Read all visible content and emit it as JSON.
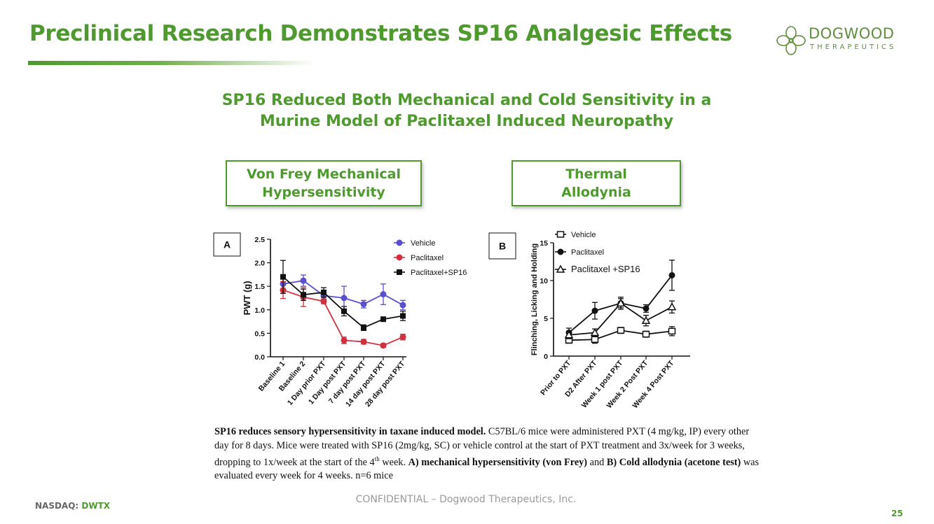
{
  "slide": {
    "title": "Preclinical Research Demonstrates SP16 Analgesic Effects",
    "subtitle_line1": "SP16 Reduced Both Mechanical and Cold Sensitivity in a",
    "subtitle_line2": "Murine Model of Paclitaxel Induced Neuropathy",
    "box_left_line1": "Von Frey Mechanical",
    "box_left_line2": "Hypersensitivity",
    "box_right_line1": "Thermal",
    "box_right_line2": "Allodynia",
    "accent_color": "#4e9a2f"
  },
  "logo": {
    "name": "DOGWOOD",
    "sub": "THERAPEUTICS"
  },
  "caption": {
    "bold1": "SP16 reduces sensory hypersensitivity in taxane induced model.",
    "text1": " C57BL/6 mice were administered PXT (4 mg/kg, IP) every other day for 8 days. Mice were treated with SP16 (2mg/kg, SC) or vehicle control at the start of PXT treatment and 3x/week for 3 weeks, dropping to 1x/week at the start of the 4",
    "sup": "th",
    "text2": " week. ",
    "bold2": "A) mechanical hypersensitivity (von Frey)",
    "text3": " and ",
    "bold3": "B) Cold allodynia (acetone test)",
    "text4": " was evaluated every week for 4 weeks. n=6 mice"
  },
  "footer": {
    "exchange": "NASDAQ:",
    "ticker": "DWTX",
    "confidential": "CONFIDENTIAL –  Dogwood Therapeutics, Inc.",
    "page": "25"
  },
  "chart_data": [
    {
      "type": "line",
      "panel_label": "A",
      "title": "",
      "xlabel": "",
      "ylabel": "PWT (g)",
      "ylim": [
        0,
        2.5
      ],
      "yticks": [
        "0.0",
        "0.5",
        "1.0",
        "1.5",
        "2.0",
        "2.5"
      ],
      "categories": [
        "Baseline 1",
        "Baseline 2",
        "1 Day prior PXT",
        "1 Day post PXT",
        "7 day post PXT",
        "14 day post PXT",
        "28 day post PXT"
      ],
      "series": [
        {
          "name": "Vehicle",
          "color": "#5a4fcf",
          "marker": "circle",
          "values": [
            1.55,
            1.62,
            1.3,
            1.25,
            1.12,
            1.33,
            1.1
          ],
          "errors": [
            0.12,
            0.12,
            0.08,
            0.25,
            0.08,
            0.22,
            0.1
          ]
        },
        {
          "name": "Paclitaxel",
          "color": "#d0313d",
          "marker": "circle",
          "values": [
            1.42,
            1.27,
            1.18,
            0.35,
            0.32,
            0.24,
            0.42
          ],
          "errors": [
            0.18,
            0.2,
            0.05,
            0.07,
            0.05,
            0.04,
            0.06
          ]
        },
        {
          "name": "Paclitaxel+SP16",
          "color": "#111111",
          "marker": "square",
          "values": [
            1.7,
            1.32,
            1.37,
            0.97,
            0.62,
            0.8,
            0.87
          ],
          "errors": [
            0.35,
            0.12,
            0.1,
            0.1,
            0.06,
            0.04,
            0.1
          ]
        }
      ]
    },
    {
      "type": "line",
      "panel_label": "B",
      "title": "",
      "xlabel": "",
      "ylabel": "Flinching, Licking and Holding",
      "ylim": [
        0,
        15
      ],
      "yticks": [
        "0",
        "5",
        "10",
        "15"
      ],
      "categories": [
        "Prior to PXT",
        "D2 After PXT",
        "Week 1 post PXT",
        "Week 2 Post PXT",
        "Week 4 Post PXT"
      ],
      "series": [
        {
          "name": "Vehicle",
          "color": "#111111",
          "marker": "open-square",
          "values": [
            2.1,
            2.2,
            3.4,
            2.9,
            3.3
          ],
          "errors": [
            0.4,
            0.5,
            0.4,
            0.4,
            0.6
          ]
        },
        {
          "name": "Paclitaxel",
          "color": "#111111",
          "marker": "circle",
          "values": [
            3.1,
            6.0,
            7.0,
            6.3,
            10.7
          ],
          "errors": [
            0.6,
            1.1,
            0.8,
            0.5,
            2.0
          ]
        },
        {
          "name": "Paclitaxel +SP16",
          "color": "#111111",
          "marker": "open-triangle",
          "values": [
            2.8,
            3.1,
            7.0,
            4.7,
            6.5
          ],
          "errors": [
            0.5,
            0.5,
            0.6,
            0.7,
            0.8
          ]
        }
      ]
    }
  ]
}
